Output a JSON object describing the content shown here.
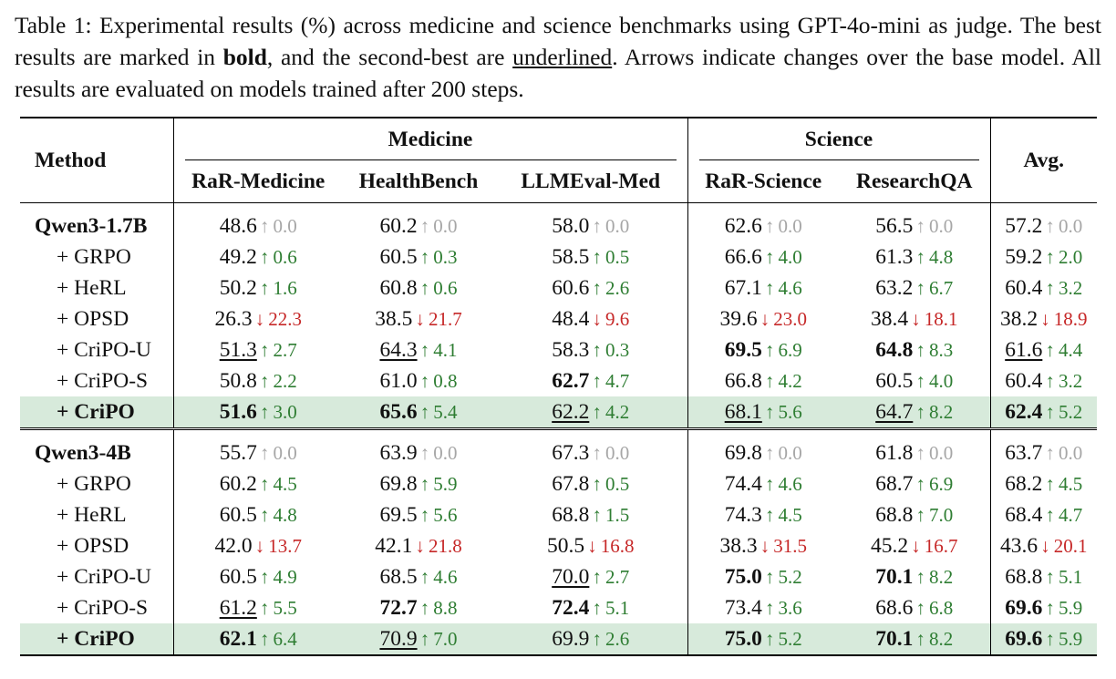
{
  "caption": {
    "part1": "Table 1: Experimental results (%) across medicine and science benchmarks using GPT-4o-mini as judge. The best results are marked in ",
    "bold_word": "bold",
    "part2": ", and the second-best are ",
    "underline_word": "underlined",
    "part3": ". Arrows indicate changes over the base model. All results are evaluated on models trained after 200 steps."
  },
  "table": {
    "method_header": "Method",
    "group_medicine": "Medicine",
    "group_science": "Science",
    "avg_header": "Avg.",
    "columns": [
      "RaR-Medicine",
      "HealthBench",
      "LLMEval-Med",
      "RaR-Science",
      "ResearchQA"
    ],
    "blocks": [
      {
        "rows": [
          {
            "method": "Qwen3-1.7B",
            "cells": [
              {
                "v": "48.6",
                "a": "↑",
                "d": "0.0"
              },
              {
                "v": "60.2",
                "a": "↑",
                "d": "0.0"
              },
              {
                "v": "58.0",
                "a": "↑",
                "d": "0.0"
              },
              {
                "v": "62.6",
                "a": "↑",
                "d": "0.0"
              },
              {
                "v": "56.5",
                "a": "↑",
                "d": "0.0"
              },
              {
                "v": "57.2",
                "a": "↑",
                "d": "0.0"
              }
            ]
          },
          {
            "method": "+ GRPO",
            "cells": [
              {
                "v": "49.2",
                "a": "↑",
                "d": "0.6"
              },
              {
                "v": "60.5",
                "a": "↑",
                "d": "0.3"
              },
              {
                "v": "58.5",
                "a": "↑",
                "d": "0.5"
              },
              {
                "v": "66.6",
                "a": "↑",
                "d": "4.0"
              },
              {
                "v": "61.3",
                "a": "↑",
                "d": "4.8"
              },
              {
                "v": "59.2",
                "a": "↑",
                "d": "2.0"
              }
            ]
          },
          {
            "method": "+ HeRL",
            "cells": [
              {
                "v": "50.2",
                "a": "↑",
                "d": "1.6"
              },
              {
                "v": "60.8",
                "a": "↑",
                "d": "0.6"
              },
              {
                "v": "60.6",
                "a": "↑",
                "d": "2.6"
              },
              {
                "v": "67.1",
                "a": "↑",
                "d": "4.6"
              },
              {
                "v": "63.2",
                "a": "↑",
                "d": "6.7"
              },
              {
                "v": "60.4",
                "a": "↑",
                "d": "3.2"
              }
            ]
          },
          {
            "method": "+ OPSD",
            "cells": [
              {
                "v": "26.3",
                "a": "↓",
                "d": "22.3"
              },
              {
                "v": "38.5",
                "a": "↓",
                "d": "21.7"
              },
              {
                "v": "48.4",
                "a": "↓",
                "d": "9.6"
              },
              {
                "v": "39.6",
                "a": "↓",
                "d": "23.0"
              },
              {
                "v": "38.4",
                "a": "↓",
                "d": "18.1"
              },
              {
                "v": "38.2",
                "a": "↓",
                "d": "18.9"
              }
            ]
          },
          {
            "method": "+ CriPO-U",
            "cells": [
              {
                "v": "51.3",
                "a": "↑",
                "d": "2.7",
                "s": "second"
              },
              {
                "v": "64.3",
                "a": "↑",
                "d": "4.1",
                "s": "second"
              },
              {
                "v": "58.3",
                "a": "↑",
                "d": "0.3"
              },
              {
                "v": "69.5",
                "a": "↑",
                "d": "6.9",
                "s": "best"
              },
              {
                "v": "64.8",
                "a": "↑",
                "d": "8.3",
                "s": "best"
              },
              {
                "v": "61.6",
                "a": "↑",
                "d": "4.4",
                "s": "second"
              }
            ]
          },
          {
            "method": "+ CriPO-S",
            "cells": [
              {
                "v": "50.8",
                "a": "↑",
                "d": "2.2"
              },
              {
                "v": "61.0",
                "a": "↑",
                "d": "0.8"
              },
              {
                "v": "62.7",
                "a": "↑",
                "d": "4.7",
                "s": "best"
              },
              {
                "v": "66.8",
                "a": "↑",
                "d": "4.2"
              },
              {
                "v": "60.5",
                "a": "↑",
                "d": "4.0"
              },
              {
                "v": "60.4",
                "a": "↑",
                "d": "3.2"
              }
            ]
          },
          {
            "method": "+ CriPO",
            "cells": [
              {
                "v": "51.6",
                "a": "↑",
                "d": "3.0",
                "s": "best"
              },
              {
                "v": "65.6",
                "a": "↑",
                "d": "5.4",
                "s": "best"
              },
              {
                "v": "62.2",
                "a": "↑",
                "d": "4.2",
                "s": "second"
              },
              {
                "v": "68.1",
                "a": "↑",
                "d": "5.6",
                "s": "second"
              },
              {
                "v": "64.7",
                "a": "↑",
                "d": "8.2",
                "s": "second"
              },
              {
                "v": "62.4",
                "a": "↑",
                "d": "5.2",
                "s": "best"
              }
            ]
          }
        ]
      },
      {
        "rows": [
          {
            "method": "Qwen3-4B",
            "cells": [
              {
                "v": "55.7",
                "a": "↑",
                "d": "0.0"
              },
              {
                "v": "63.9",
                "a": "↑",
                "d": "0.0"
              },
              {
                "v": "67.3",
                "a": "↑",
                "d": "0.0"
              },
              {
                "v": "69.8",
                "a": "↑",
                "d": "0.0"
              },
              {
                "v": "61.8",
                "a": "↑",
                "d": "0.0"
              },
              {
                "v": "63.7",
                "a": "↑",
                "d": "0.0"
              }
            ]
          },
          {
            "method": "+ GRPO",
            "cells": [
              {
                "v": "60.2",
                "a": "↑",
                "d": "4.5"
              },
              {
                "v": "69.8",
                "a": "↑",
                "d": "5.9"
              },
              {
                "v": "67.8",
                "a": "↑",
                "d": "0.5"
              },
              {
                "v": "74.4",
                "a": "↑",
                "d": "4.6"
              },
              {
                "v": "68.7",
                "a": "↑",
                "d": "6.9"
              },
              {
                "v": "68.2",
                "a": "↑",
                "d": "4.5"
              }
            ]
          },
          {
            "method": "+ HeRL",
            "cells": [
              {
                "v": "60.5",
                "a": "↑",
                "d": "4.8"
              },
              {
                "v": "69.5",
                "a": "↑",
                "d": "5.6"
              },
              {
                "v": "68.8",
                "a": "↑",
                "d": "1.5"
              },
              {
                "v": "74.3",
                "a": "↑",
                "d": "4.5"
              },
              {
                "v": "68.8",
                "a": "↑",
                "d": "7.0"
              },
              {
                "v": "68.4",
                "a": "↑",
                "d": "4.7"
              }
            ]
          },
          {
            "method": "+ OPSD",
            "cells": [
              {
                "v": "42.0",
                "a": "↓",
                "d": "13.7"
              },
              {
                "v": "42.1",
                "a": "↓",
                "d": "21.8"
              },
              {
                "v": "50.5",
                "a": "↓",
                "d": "16.8"
              },
              {
                "v": "38.3",
                "a": "↓",
                "d": "31.5"
              },
              {
                "v": "45.2",
                "a": "↓",
                "d": "16.7"
              },
              {
                "v": "43.6",
                "a": "↓",
                "d": "20.1"
              }
            ]
          },
          {
            "method": "+ CriPO-U",
            "cells": [
              {
                "v": "60.5",
                "a": "↑",
                "d": "4.9"
              },
              {
                "v": "68.5",
                "a": "↑",
                "d": "4.6"
              },
              {
                "v": "70.0",
                "a": "↑",
                "d": "2.7",
                "s": "second"
              },
              {
                "v": "75.0",
                "a": "↑",
                "d": "5.2",
                "s": "best"
              },
              {
                "v": "70.1",
                "a": "↑",
                "d": "8.2",
                "s": "best"
              },
              {
                "v": "68.8",
                "a": "↑",
                "d": "5.1"
              }
            ]
          },
          {
            "method": "+ CriPO-S",
            "cells": [
              {
                "v": "61.2",
                "a": "↑",
                "d": "5.5",
                "s": "second"
              },
              {
                "v": "72.7",
                "a": "↑",
                "d": "8.8",
                "s": "best"
              },
              {
                "v": "72.4",
                "a": "↑",
                "d": "5.1",
                "s": "best"
              },
              {
                "v": "73.4",
                "a": "↑",
                "d": "3.6"
              },
              {
                "v": "68.6",
                "a": "↑",
                "d": "6.8"
              },
              {
                "v": "69.6",
                "a": "↑",
                "d": "5.9",
                "s": "best"
              }
            ]
          },
          {
            "method": "+ CriPO",
            "cells": [
              {
                "v": "62.1",
                "a": "↑",
                "d": "6.4",
                "s": "best"
              },
              {
                "v": "70.9",
                "a": "↑",
                "d": "7.0",
                "s": "second"
              },
              {
                "v": "69.9",
                "a": "↑",
                "d": "2.6"
              },
              {
                "v": "75.0",
                "a": "↑",
                "d": "5.2",
                "s": "best"
              },
              {
                "v": "70.1",
                "a": "↑",
                "d": "8.2",
                "s": "best"
              },
              {
                "v": "69.6",
                "a": "↑",
                "d": "5.9",
                "s": "best"
              }
            ]
          }
        ]
      }
    ],
    "colors": {
      "up": "#2e7d32",
      "down": "#c62828",
      "zero": "#a6a6a6",
      "highlight": "#d7eadb"
    }
  }
}
